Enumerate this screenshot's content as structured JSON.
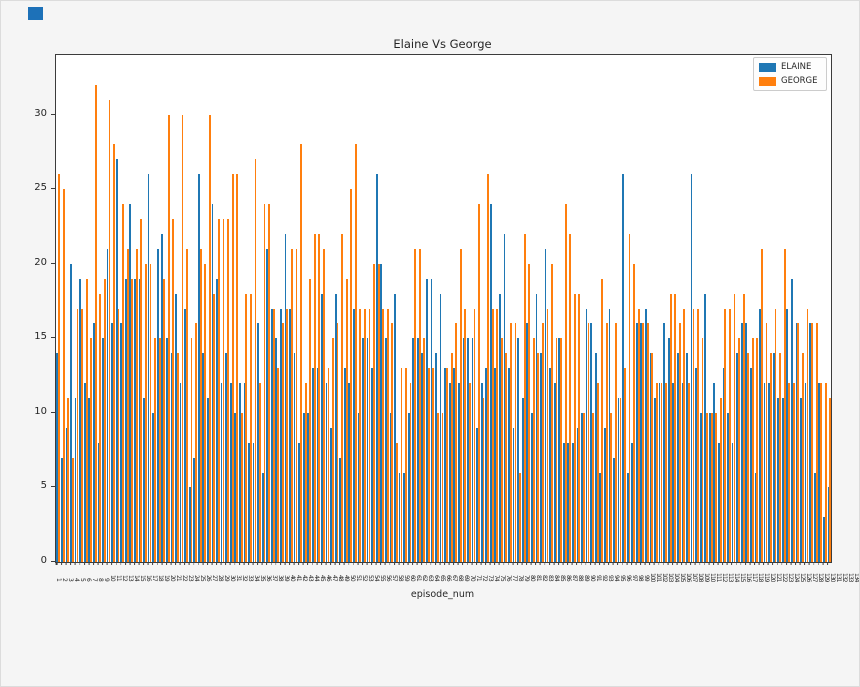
{
  "page": {
    "background_color": "#f5f5f5",
    "logo_color": "#1d71b8"
  },
  "chart_data": {
    "type": "bar",
    "title": "Elaine Vs George",
    "xlabel": "episode_num",
    "ylabel": "",
    "ylim": [
      0,
      34
    ],
    "yticks": [
      0,
      5,
      10,
      15,
      20,
      25,
      30
    ],
    "grid": false,
    "legend_position": "upper right",
    "bar_colors": {
      "ELAINE": "#1f77b4",
      "GEORGE": "#ff7f0e"
    },
    "categories": [
      1,
      2,
      3,
      4,
      5,
      6,
      7,
      8,
      9,
      10,
      11,
      12,
      13,
      14,
      15,
      16,
      17,
      18,
      19,
      20,
      21,
      22,
      23,
      24,
      25,
      26,
      27,
      28,
      29,
      30,
      31,
      32,
      33,
      34,
      35,
      36,
      37,
      38,
      39,
      40,
      41,
      42,
      43,
      44,
      45,
      46,
      47,
      48,
      49,
      50,
      51,
      52,
      53,
      54,
      55,
      56,
      57,
      58,
      59,
      60,
      61,
      62,
      63,
      64,
      65,
      66,
      67,
      68,
      69,
      70,
      71,
      72,
      73,
      74,
      75,
      76,
      77,
      78,
      79,
      80,
      81,
      82,
      83,
      84,
      85,
      86,
      87,
      88,
      89,
      90,
      91,
      92,
      93,
      94,
      95,
      96,
      97,
      98,
      99,
      100,
      101,
      102,
      103,
      104,
      105,
      106,
      107,
      108,
      109,
      110,
      111,
      112,
      113,
      114,
      115,
      116,
      117,
      118,
      119,
      120,
      121,
      122,
      123,
      124,
      125,
      126,
      127,
      128,
      129,
      130,
      131,
      132,
      133,
      134,
      135,
      136,
      137,
      138,
      139,
      140,
      141,
      142,
      143,
      144,
      145,
      146,
      147,
      148,
      149,
      150,
      151,
      152,
      153,
      154,
      155,
      156,
      157,
      158,
      159,
      160,
      161,
      162,
      163,
      164,
      165,
      166,
      167,
      168,
      169,
      170
    ],
    "series": [
      {
        "name": "ELAINE",
        "values": [
          14,
          7,
          9,
          20,
          11,
          19,
          12,
          11,
          16,
          8,
          15,
          21,
          16,
          27,
          16,
          19,
          24,
          19,
          19,
          11,
          26,
          10,
          21,
          22,
          15,
          14,
          18,
          12,
          17,
          5,
          7,
          26,
          14,
          11,
          24,
          19,
          12,
          14,
          12,
          10,
          12,
          12,
          8,
          8,
          16,
          6,
          21,
          17,
          15,
          17,
          22,
          17,
          14,
          8,
          10,
          10,
          13,
          13,
          18,
          12,
          9,
          18,
          7,
          13,
          12,
          17,
          10,
          15,
          15,
          13,
          26,
          20,
          15,
          10,
          18,
          6,
          6,
          10,
          15,
          15,
          14,
          19,
          19,
          14,
          18,
          13,
          12,
          13,
          12,
          15,
          15,
          15,
          9,
          12,
          13,
          24,
          13,
          18,
          22,
          13,
          9,
          15,
          11,
          16,
          10,
          18,
          14,
          21,
          13,
          12,
          15,
          8,
          8,
          8,
          9,
          10,
          17,
          16,
          14,
          6,
          9,
          17,
          7,
          11,
          26,
          6,
          8,
          16,
          16,
          17,
          14,
          11,
          12,
          16,
          15,
          12,
          14,
          12,
          14,
          26,
          13,
          10,
          18,
          10,
          12,
          8,
          13,
          10,
          8,
          14,
          16,
          16,
          13,
          6,
          17,
          12,
          12,
          14,
          11,
          11,
          17,
          19,
          16,
          11,
          12,
          16,
          6,
          12,
          3,
          5
        ]
      },
      {
        "name": "GEORGE",
        "values": [
          26,
          25,
          11,
          7,
          17,
          17,
          19,
          15,
          32,
          18,
          19,
          31,
          28,
          17,
          24,
          21,
          19,
          21,
          23,
          20,
          20,
          15,
          15,
          19,
          30,
          23,
          14,
          30,
          21,
          15,
          16,
          21,
          20,
          30,
          18,
          23,
          23,
          23,
          26,
          26,
          10,
          18,
          18,
          27,
          12,
          24,
          24,
          17,
          13,
          16,
          17,
          21,
          21,
          28,
          12,
          19,
          22,
          22,
          21,
          13,
          15,
          16,
          22,
          19,
          25,
          28,
          17,
          17,
          17,
          20,
          20,
          17,
          17,
          16,
          8,
          13,
          13,
          12,
          21,
          21,
          15,
          13,
          13,
          10,
          10,
          13,
          14,
          16,
          21,
          17,
          12,
          17,
          24,
          11,
          26,
          17,
          17,
          15,
          14,
          16,
          16,
          6,
          22,
          20,
          15,
          14,
          16,
          17,
          20,
          15,
          15,
          24,
          22,
          18,
          18,
          10,
          16,
          10,
          12,
          19,
          16,
          10,
          16,
          11,
          13,
          22,
          20,
          17,
          16,
          16,
          14,
          12,
          12,
          12,
          18,
          18,
          16,
          17,
          12,
          17,
          17,
          15,
          10,
          10,
          10,
          11,
          17,
          17,
          18,
          15,
          18,
          14,
          15,
          15,
          21,
          16,
          14,
          17,
          14,
          21,
          12,
          12,
          16,
          14,
          17,
          16,
          16,
          12,
          12,
          11
        ]
      }
    ]
  }
}
